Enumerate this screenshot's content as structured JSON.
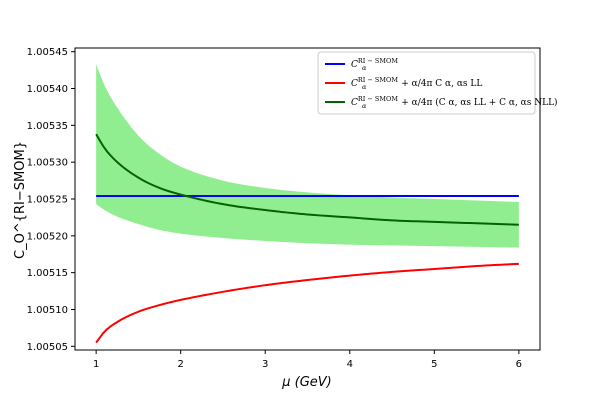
{
  "chart_data": {
    "type": "line",
    "xlabel": "μ (GeV)",
    "ylabel": "C_O^{RI−SMOM}",
    "xlim": [
      0.75,
      6.25
    ],
    "ylim": [
      1.005045,
      1.005455
    ],
    "x_ticks": [
      1,
      2,
      3,
      4,
      5,
      6
    ],
    "x_tick_labels": [
      "1",
      "2",
      "3",
      "4",
      "5",
      "6"
    ],
    "y_ticks": [
      1.00505,
      1.0051,
      1.00515,
      1.0052,
      1.00525,
      1.0053,
      1.00535,
      1.0054,
      1.00545
    ],
    "y_tick_labels": [
      "1.00505",
      "1.00510",
      "1.00515",
      "1.00520",
      "1.00525",
      "1.00530",
      "1.00535",
      "1.00540",
      "1.00545"
    ],
    "grid": false,
    "legend_position": "top-right",
    "x": [
      1.0,
      1.1,
      1.25,
      1.5,
      1.75,
      2.0,
      2.5,
      3.0,
      3.5,
      4.0,
      4.5,
      5.0,
      5.5,
      6.0
    ],
    "series": [
      {
        "name": "C_α^{RI−SMOM}",
        "legend": {
          "main": "C",
          "sub": "α",
          "sup": "RI − SMOM",
          "tail": ""
        },
        "color": "#0000ff",
        "values": [
          1.005254,
          1.005254,
          1.005254,
          1.005254,
          1.005254,
          1.005254,
          1.005254,
          1.005254,
          1.005254,
          1.005254,
          1.005254,
          1.005254,
          1.005254,
          1.005254
        ]
      },
      {
        "name": "C_α^{RI−SMOM} + α/4π C_{α,αs LL}^{RI−SMOM}",
        "legend": {
          "main": "C",
          "sub": "α",
          "sup": "RI − SMOM",
          "tail": " + α/4π C α, αs LL"
        },
        "color": "#ff0000",
        "values": [
          1.005055,
          1.00507,
          1.005083,
          1.005097,
          1.005106,
          1.005113,
          1.005124,
          1.005133,
          1.00514,
          1.005146,
          1.005151,
          1.005155,
          1.005159,
          1.005162
        ]
      },
      {
        "name": "C_α^{RI−SMOM} + α/4π (C_{α,αs LL}^{RI−SMOM} + C_{α,αs NLL}^{RI−SMOM})",
        "legend": {
          "main": "C",
          "sub": "α",
          "sup": "RI − SMOM",
          "tail": " + α/4π (C α, αs LL + C α, αs NLL)"
        },
        "color": "#006400",
        "values": [
          1.005338,
          1.005319,
          1.0053,
          1.005279,
          1.005265,
          1.005256,
          1.005243,
          1.005235,
          1.005229,
          1.005225,
          1.005221,
          1.005219,
          1.005217,
          1.005215
        ]
      }
    ],
    "band": {
      "color": "#90ee90",
      "upper": [
        1.005433,
        1.005404,
        1.005374,
        1.005336,
        1.005311,
        1.005294,
        1.005275,
        1.005265,
        1.005259,
        1.005255,
        1.005252,
        1.00525,
        1.005248,
        1.005246
      ],
      "lower": [
        1.005243,
        1.005235,
        1.005226,
        1.005216,
        1.005208,
        1.005203,
        1.005197,
        1.005193,
        1.00519,
        1.005188,
        1.005187,
        1.005186,
        1.005185,
        1.005184
      ]
    }
  }
}
